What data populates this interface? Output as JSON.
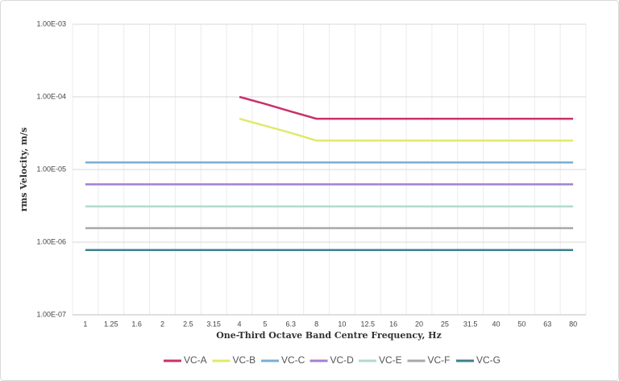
{
  "chart_data": {
    "type": "line",
    "x_label": "One-Third Octave Band Centre Frequency, Hz",
    "y_label": "rms Velocity, m/s",
    "categories": [
      "1",
      "1.25",
      "1.6",
      "2",
      "2.5",
      "3.15",
      "4",
      "5",
      "6.3",
      "8",
      "10",
      "12.5",
      "16",
      "20",
      "25",
      "31.5",
      "40",
      "50",
      "63",
      "80"
    ],
    "series": [
      {
        "name": "VC-A",
        "color": "#c9316a",
        "values": [
          null,
          null,
          null,
          null,
          null,
          null,
          0.0001,
          8e-05,
          6.3e-05,
          5e-05,
          5e-05,
          5e-05,
          5e-05,
          5e-05,
          5e-05,
          5e-05,
          5e-05,
          5e-05,
          5e-05,
          5e-05
        ]
      },
      {
        "name": "VC-B",
        "color": "#e3e86a",
        "values": [
          null,
          null,
          null,
          null,
          null,
          null,
          5e-05,
          4e-05,
          3.2e-05,
          2.5e-05,
          2.5e-05,
          2.5e-05,
          2.5e-05,
          2.5e-05,
          2.5e-05,
          2.5e-05,
          2.5e-05,
          2.5e-05,
          2.5e-05,
          2.5e-05
        ]
      },
      {
        "name": "VC-C",
        "color": "#7aaed2",
        "values": [
          1.25e-05,
          1.25e-05,
          1.25e-05,
          1.25e-05,
          1.25e-05,
          1.25e-05,
          1.25e-05,
          1.25e-05,
          1.25e-05,
          1.25e-05,
          1.25e-05,
          1.25e-05,
          1.25e-05,
          1.25e-05,
          1.25e-05,
          1.25e-05,
          1.25e-05,
          1.25e-05,
          1.25e-05,
          1.25e-05
        ]
      },
      {
        "name": "VC-D",
        "color": "#a47fd2",
        "values": [
          6.25e-06,
          6.25e-06,
          6.25e-06,
          6.25e-06,
          6.25e-06,
          6.25e-06,
          6.25e-06,
          6.25e-06,
          6.25e-06,
          6.25e-06,
          6.25e-06,
          6.25e-06,
          6.25e-06,
          6.25e-06,
          6.25e-06,
          6.25e-06,
          6.25e-06,
          6.25e-06,
          6.25e-06,
          6.25e-06
        ]
      },
      {
        "name": "VC-E",
        "color": "#b2dbcf",
        "values": [
          3.1e-06,
          3.1e-06,
          3.1e-06,
          3.1e-06,
          3.1e-06,
          3.1e-06,
          3.1e-06,
          3.1e-06,
          3.1e-06,
          3.1e-06,
          3.1e-06,
          3.1e-06,
          3.1e-06,
          3.1e-06,
          3.1e-06,
          3.1e-06,
          3.1e-06,
          3.1e-06,
          3.1e-06,
          3.1e-06
        ]
      },
      {
        "name": "VC-F",
        "color": "#a8a8a8",
        "values": [
          1.56e-06,
          1.56e-06,
          1.56e-06,
          1.56e-06,
          1.56e-06,
          1.56e-06,
          1.56e-06,
          1.56e-06,
          1.56e-06,
          1.56e-06,
          1.56e-06,
          1.56e-06,
          1.56e-06,
          1.56e-06,
          1.56e-06,
          1.56e-06,
          1.56e-06,
          1.56e-06,
          1.56e-06,
          1.56e-06
        ]
      },
      {
        "name": "VC-G",
        "color": "#3d7f8e",
        "values": [
          7.8e-07,
          7.8e-07,
          7.8e-07,
          7.8e-07,
          7.8e-07,
          7.8e-07,
          7.8e-07,
          7.8e-07,
          7.8e-07,
          7.8e-07,
          7.8e-07,
          7.8e-07,
          7.8e-07,
          7.8e-07,
          7.8e-07,
          7.8e-07,
          7.8e-07,
          7.8e-07,
          7.8e-07,
          7.8e-07
        ]
      }
    ],
    "ylim": [
      1e-07,
      0.001
    ],
    "y_log": true,
    "yticks": [
      {
        "value": 1e-07,
        "label": "1.00E-07"
      },
      {
        "value": 1e-06,
        "label": "1.00E-06"
      },
      {
        "value": 1e-05,
        "label": "1.00E-05"
      },
      {
        "value": 0.0001,
        "label": "1.00E-04"
      },
      {
        "value": 0.001,
        "label": "1.00E-03"
      }
    ],
    "grid": true,
    "legend": "bottom"
  }
}
